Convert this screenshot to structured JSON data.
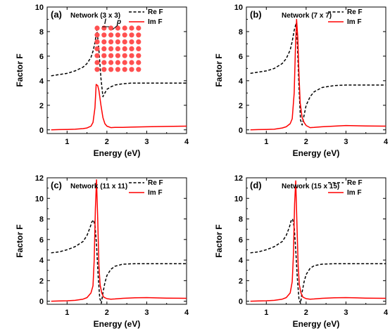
{
  "chart_data": [
    {
      "type": "line",
      "panel_label": "(a)",
      "network_label": "Network (3 x 3)",
      "xlabel": "Energy (eV)",
      "ylabel": "Factor F",
      "xlim": [
        0.5,
        4.0
      ],
      "ylim": [
        -0.3,
        10
      ],
      "xticks": [
        1,
        2,
        3,
        4
      ],
      "yticks": [
        0,
        2,
        4,
        6,
        8,
        10
      ],
      "legend_position": "top-right",
      "inset": {
        "label_l": "l",
        "label_p": "p",
        "rows": 7,
        "cols": 7,
        "color": "#ff5050"
      },
      "series": [
        {
          "name": "Re F",
          "style": "dashed",
          "color": "#000000",
          "x": [
            0.6,
            0.8,
            1.0,
            1.2,
            1.4,
            1.5,
            1.6,
            1.65,
            1.7,
            1.75,
            1.8,
            1.85,
            1.9,
            1.95,
            2.0,
            2.1,
            2.2,
            2.4,
            2.6,
            3.0,
            3.5,
            4.0
          ],
          "y": [
            4.4,
            4.5,
            4.6,
            4.8,
            5.1,
            5.4,
            5.9,
            6.4,
            7.1,
            8.2,
            6.5,
            4.2,
            2.7,
            3.0,
            3.3,
            3.5,
            3.65,
            3.75,
            3.8,
            3.8,
            3.8,
            3.8
          ]
        },
        {
          "name": "Im F",
          "style": "solid",
          "color": "#ff0000",
          "x": [
            0.6,
            0.8,
            1.0,
            1.2,
            1.4,
            1.5,
            1.6,
            1.65,
            1.7,
            1.73,
            1.77,
            1.8,
            1.85,
            1.9,
            1.95,
            2.0,
            2.1,
            2.2,
            2.4,
            2.6,
            3.0,
            3.5,
            4.0
          ],
          "y": [
            0.0,
            0.02,
            0.03,
            0.05,
            0.1,
            0.15,
            0.3,
            0.6,
            1.8,
            3.7,
            3.6,
            3.2,
            2.0,
            1.0,
            0.5,
            0.3,
            0.18,
            0.2,
            0.2,
            0.22,
            0.25,
            0.28,
            0.3
          ]
        }
      ]
    },
    {
      "type": "line",
      "panel_label": "(b)",
      "network_label": "Network (7 x 7)",
      "xlabel": "Energy (eV)",
      "ylabel": "Factor F",
      "xlim": [
        0.5,
        4.0
      ],
      "ylim": [
        -0.3,
        10
      ],
      "xticks": [
        1,
        2,
        3,
        4
      ],
      "yticks": [
        0,
        2,
        4,
        6,
        8,
        10
      ],
      "legend_position": "top-right",
      "series": [
        {
          "name": "Re F",
          "style": "dashed",
          "color": "#000000",
          "x": [
            0.6,
            0.8,
            1.0,
            1.2,
            1.4,
            1.5,
            1.6,
            1.65,
            1.7,
            1.75,
            1.78,
            1.82,
            1.86,
            1.9,
            1.95,
            2.0,
            2.1,
            2.2,
            2.4,
            2.7,
            3.0,
            3.5,
            4.0
          ],
          "y": [
            4.6,
            4.7,
            4.8,
            5.0,
            5.4,
            5.8,
            6.5,
            7.2,
            8.1,
            8.7,
            7.0,
            3.5,
            0.8,
            0.4,
            1.2,
            2.0,
            2.7,
            3.1,
            3.45,
            3.6,
            3.65,
            3.65,
            3.65
          ]
        },
        {
          "name": "Im F",
          "style": "solid",
          "color": "#ff0000",
          "x": [
            0.6,
            0.8,
            1.0,
            1.2,
            1.4,
            1.5,
            1.6,
            1.65,
            1.7,
            1.73,
            1.76,
            1.79,
            1.82,
            1.85,
            1.9,
            1.95,
            2.0,
            2.1,
            2.2,
            2.4,
            2.7,
            3.0,
            3.5,
            4.0
          ],
          "y": [
            0.0,
            0.02,
            0.03,
            0.05,
            0.15,
            0.25,
            0.5,
            0.9,
            3.0,
            6.5,
            9.0,
            7.5,
            4.5,
            2.2,
            1.0,
            0.6,
            0.35,
            0.18,
            0.2,
            0.25,
            0.3,
            0.35,
            0.32,
            0.3
          ]
        }
      ]
    },
    {
      "type": "line",
      "panel_label": "(c)",
      "network_label": "Network (11 x 11)",
      "xlabel": "Energy (eV)",
      "ylabel": "Factor F",
      "xlim": [
        0.5,
        4.0
      ],
      "ylim": [
        -0.3,
        12
      ],
      "xticks": [
        1,
        2,
        3,
        4
      ],
      "yticks": [
        0,
        2,
        4,
        6,
        8,
        10,
        12
      ],
      "legend_position": "top-right",
      "series": [
        {
          "name": "Re F",
          "style": "dashed",
          "color": "#000000",
          "x": [
            0.6,
            0.8,
            1.0,
            1.2,
            1.4,
            1.5,
            1.58,
            1.62,
            1.66,
            1.7,
            1.74,
            1.78,
            1.82,
            1.86,
            1.9,
            1.95,
            2.0,
            2.1,
            2.2,
            2.4,
            2.7,
            3.0,
            3.5,
            4.0
          ],
          "y": [
            4.7,
            4.8,
            5.0,
            5.3,
            5.8,
            6.4,
            7.2,
            7.7,
            7.9,
            7.4,
            5.5,
            2.5,
            0.3,
            -0.2,
            0.8,
            1.8,
            2.5,
            3.1,
            3.4,
            3.6,
            3.65,
            3.65,
            3.65,
            3.65
          ]
        },
        {
          "name": "Im F",
          "style": "solid",
          "color": "#ff0000",
          "x": [
            0.6,
            0.8,
            1.0,
            1.2,
            1.4,
            1.5,
            1.6,
            1.65,
            1.68,
            1.71,
            1.74,
            1.77,
            1.8,
            1.83,
            1.87,
            1.92,
            2.0,
            2.1,
            2.2,
            2.4,
            2.7,
            3.0,
            3.5,
            4.0
          ],
          "y": [
            0.0,
            0.02,
            0.04,
            0.08,
            0.2,
            0.35,
            0.8,
            1.5,
            4.0,
            9.0,
            11.8,
            8.0,
            3.5,
            1.6,
            0.8,
            0.4,
            0.25,
            0.2,
            0.22,
            0.28,
            0.33,
            0.35,
            0.3,
            0.28
          ]
        }
      ]
    },
    {
      "type": "line",
      "panel_label": "(d)",
      "network_label": "Network (15 x 15)",
      "xlabel": "Energy (eV)",
      "ylabel": "Factor F",
      "xlim": [
        0.5,
        4.0
      ],
      "ylim": [
        -0.3,
        12
      ],
      "xticks": [
        1,
        2,
        3,
        4
      ],
      "yticks": [
        0,
        2,
        4,
        6,
        8,
        10,
        12
      ],
      "legend_position": "top-right",
      "series": [
        {
          "name": "Re F",
          "style": "dashed",
          "color": "#000000",
          "x": [
            0.6,
            0.8,
            1.0,
            1.2,
            1.4,
            1.5,
            1.58,
            1.62,
            1.66,
            1.7,
            1.74,
            1.78,
            1.82,
            1.86,
            1.9,
            1.95,
            2.0,
            2.1,
            2.2,
            2.4,
            2.7,
            3.0,
            3.5,
            4.0
          ],
          "y": [
            4.7,
            4.8,
            5.0,
            5.3,
            5.8,
            6.4,
            7.2,
            7.8,
            8.0,
            7.2,
            5.0,
            2.2,
            0.2,
            -0.2,
            0.9,
            1.9,
            2.6,
            3.2,
            3.45,
            3.6,
            3.65,
            3.65,
            3.65,
            3.65
          ]
        },
        {
          "name": "Im F",
          "style": "solid",
          "color": "#ff0000",
          "x": [
            0.6,
            0.8,
            1.0,
            1.2,
            1.4,
            1.5,
            1.6,
            1.65,
            1.68,
            1.71,
            1.74,
            1.77,
            1.8,
            1.83,
            1.87,
            1.92,
            2.0,
            2.1,
            2.2,
            2.4,
            2.7,
            3.0,
            3.5,
            4.0
          ],
          "y": [
            0.0,
            0.02,
            0.04,
            0.08,
            0.2,
            0.35,
            0.8,
            1.9,
            4.5,
            9.5,
            11.7,
            7.5,
            3.5,
            1.6,
            0.8,
            0.4,
            0.25,
            0.2,
            0.22,
            0.28,
            0.33,
            0.35,
            0.3,
            0.28
          ]
        }
      ]
    }
  ]
}
